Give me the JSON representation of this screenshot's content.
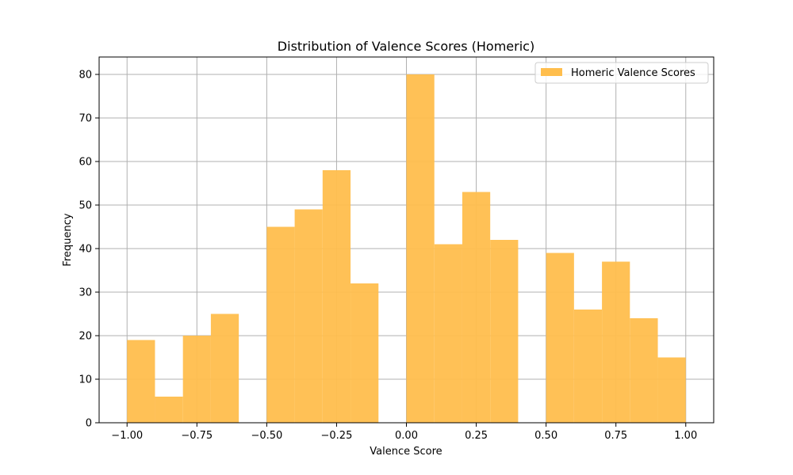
{
  "chart_data": {
    "type": "bar",
    "title": "Distribution of Valence Scores (Homeric)",
    "xlabel": "Valence Score",
    "ylabel": "Frequency",
    "xlim": [
      -1.1,
      1.1
    ],
    "ylim": [
      0,
      84
    ],
    "bin_width": 0.1,
    "bin_starts": [
      -1.0,
      -0.9,
      -0.8,
      -0.7,
      -0.6,
      -0.5,
      -0.4,
      -0.3,
      -0.2,
      -0.1,
      0.0,
      0.1,
      0.2,
      0.3,
      0.4,
      0.5,
      0.6,
      0.7,
      0.8,
      0.9
    ],
    "values": [
      19,
      6,
      20,
      25,
      0,
      45,
      49,
      58,
      32,
      0,
      80,
      41,
      53,
      42,
      0,
      39,
      26,
      37,
      24,
      15
    ],
    "x_ticks": [
      -1.0,
      -0.75,
      -0.5,
      -0.25,
      0.0,
      0.25,
      0.5,
      0.75,
      1.0
    ],
    "x_tick_labels": [
      "−1.00",
      "−0.75",
      "−0.50",
      "−0.25",
      "0.00",
      "0.25",
      "0.50",
      "0.75",
      "1.00"
    ],
    "y_ticks": [
      0,
      10,
      20,
      30,
      40,
      50,
      60,
      70,
      80
    ],
    "y_tick_labels": [
      "0",
      "10",
      "20",
      "30",
      "40",
      "50",
      "60",
      "70",
      "80"
    ],
    "grid": true,
    "legend": {
      "position": "top-right",
      "entries": [
        "Homeric Valence Scores"
      ]
    },
    "series": [
      {
        "name": "Homeric Valence Scores",
        "color": "#ffbe4d"
      }
    ]
  }
}
